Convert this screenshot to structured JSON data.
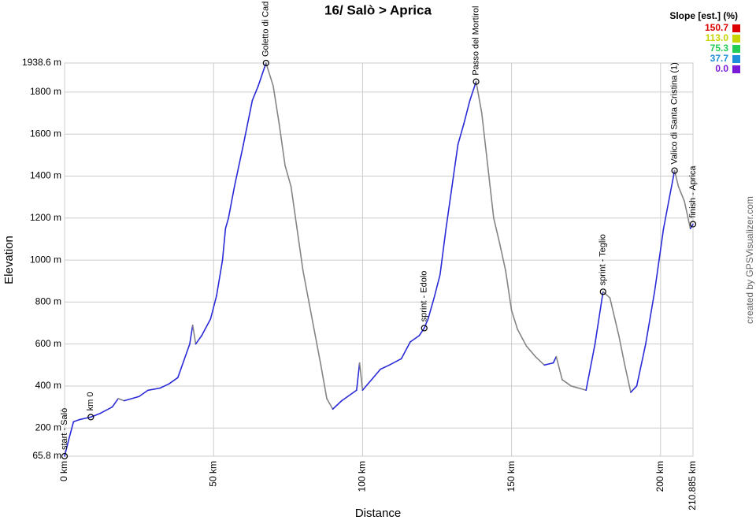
{
  "chart_data": {
    "type": "line",
    "title": "16/ Salò > Aprica",
    "x_label": "Distance",
    "y_label": "Elevation",
    "credit": "created by GPSVisualizer.com",
    "xlim": [
      0,
      210.885
    ],
    "ylim": [
      65.8,
      1938.6
    ],
    "xticks": [
      {
        "value": 0,
        "label": "0 km"
      },
      {
        "value": 50,
        "label": "50 km"
      },
      {
        "value": 100,
        "label": "100 km"
      },
      {
        "value": 150,
        "label": "150 km"
      },
      {
        "value": 200,
        "label": "200 km"
      },
      {
        "value": 210.885,
        "label": "210.885 km"
      }
    ],
    "yticks": [
      {
        "value": 65.8,
        "label": "65.8 m"
      },
      {
        "value": 200,
        "label": "200 m"
      },
      {
        "value": 400,
        "label": "400 m"
      },
      {
        "value": 600,
        "label": "600 m"
      },
      {
        "value": 800,
        "label": "800 m"
      },
      {
        "value": 1000,
        "label": "1000 m"
      },
      {
        "value": 1200,
        "label": "1200 m"
      },
      {
        "value": 1400,
        "label": "1400 m"
      },
      {
        "value": 1600,
        "label": "1600 m"
      },
      {
        "value": 1800,
        "label": "1800 m"
      },
      {
        "value": 1938.6,
        "label": "1938.6 m"
      }
    ],
    "grid": true,
    "climb_color": "#2a2ad8",
    "descent_color": "#858585",
    "x": [
      0,
      1.5,
      3,
      5,
      8.8,
      12,
      16,
      18,
      20,
      25,
      28,
      32,
      35,
      38,
      40,
      42,
      43,
      44,
      46,
      49,
      51,
      53,
      54,
      55,
      57,
      60,
      63,
      65,
      67.6,
      70,
      72,
      74,
      76,
      78,
      80,
      82,
      84,
      86,
      88,
      90,
      93,
      96,
      98,
      99,
      100,
      103,
      106,
      109,
      113,
      116,
      119,
      120.7,
      122,
      124,
      126,
      128,
      130,
      132,
      134,
      136,
      138.1,
      140,
      142,
      144,
      146,
      148,
      150,
      152,
      155,
      158,
      161,
      164,
      165,
      167,
      170,
      175,
      178,
      180.7,
      183,
      186,
      188,
      190,
      192,
      195,
      198,
      201,
      203,
      204.7,
      206,
      208,
      210,
      210.885
    ],
    "values": [
      65.8,
      150,
      230,
      240,
      252,
      270,
      300,
      340,
      330,
      350,
      380,
      390,
      410,
      440,
      520,
      600,
      690,
      600,
      640,
      720,
      830,
      1000,
      1150,
      1200,
      1350,
      1550,
      1760,
      1830,
      1938.6,
      1830,
      1650,
      1450,
      1350,
      1150,
      950,
      800,
      650,
      500,
      340,
      290,
      330,
      360,
      380,
      510,
      380,
      430,
      480,
      500,
      530,
      610,
      640,
      676,
      720,
      820,
      930,
      1150,
      1350,
      1550,
      1650,
      1760,
      1850,
      1700,
      1450,
      1200,
      1080,
      950,
      760,
      670,
      590,
      540,
      500,
      510,
      540,
      430,
      400,
      380,
      600,
      849,
      820,
      640,
      500,
      370,
      400,
      600,
      850,
      1150,
      1300,
      1426,
      1350,
      1280,
      1150,
      1171
    ],
    "waypoints": [
      {
        "label": "start - Salò",
        "x": 0,
        "y": 65.8
      },
      {
        "label": "km 0",
        "x": 8.8,
        "y": 252
      },
      {
        "label": "Goletto di Cad",
        "x": 67.6,
        "y": 1938.6
      },
      {
        "label": "sprint - Edolo",
        "x": 120.7,
        "y": 676
      },
      {
        "label": "Passo del Mortirol",
        "x": 138.1,
        "y": 1850
      },
      {
        "label": "sprint - Teglio",
        "x": 180.7,
        "y": 849
      },
      {
        "label": "Valico di Santa Cristina (1)",
        "x": 204.7,
        "y": 1426
      },
      {
        "label": "finish - Aprica",
        "x": 210.885,
        "y": 1171
      }
    ],
    "legend": {
      "title": "Slope [est.] (%)",
      "items": [
        {
          "label": "150.7",
          "color": "#dd0000"
        },
        {
          "label": "113.0",
          "color": "#c8d400"
        },
        {
          "label": "75.3",
          "color": "#22cc55"
        },
        {
          "label": "37.7",
          "color": "#1e8fd8"
        },
        {
          "label": "0.0",
          "color": "#7a1ad8"
        }
      ]
    }
  }
}
